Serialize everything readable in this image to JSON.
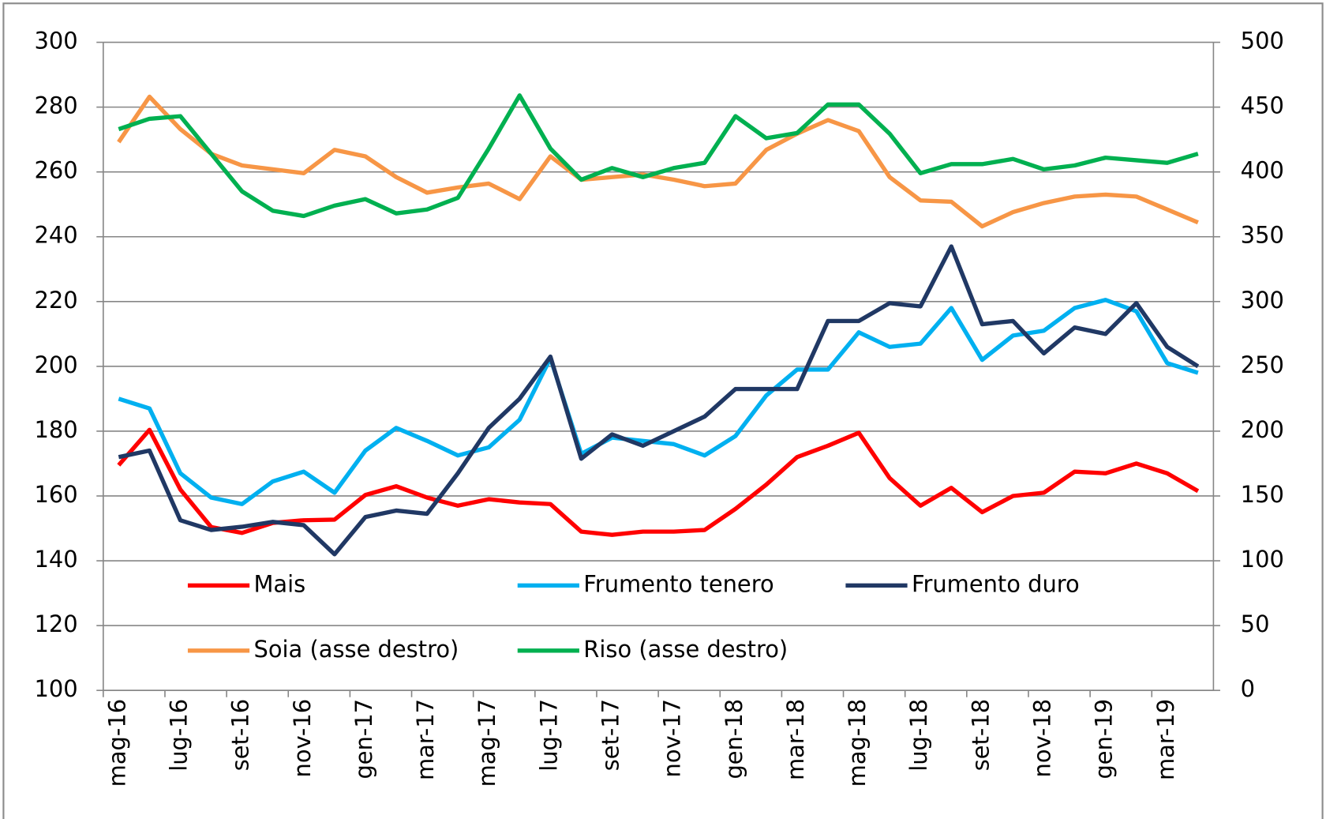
{
  "chart_data": {
    "type": "line",
    "categories": [
      "mag-16",
      null,
      "lug-16",
      null,
      "set-16",
      null,
      "nov-16",
      null,
      "gen-17",
      null,
      "mar-17",
      null,
      "mag-17",
      null,
      "lug-17",
      null,
      "set-17",
      null,
      "nov-17",
      null,
      "gen-18",
      null,
      "mar-18",
      null,
      "mag-18",
      null,
      "lug-18",
      null,
      "set-18",
      null,
      "nov-18",
      null,
      "gen-19",
      null,
      "mar-19",
      null
    ],
    "ylim": [
      100,
      300
    ],
    "yticks": [
      100,
      120,
      140,
      160,
      180,
      200,
      220,
      240,
      260,
      280,
      300
    ],
    "y2lim": [
      0,
      500
    ],
    "y2ticks": [
      0,
      50,
      100,
      150,
      200,
      250,
      300,
      350,
      400,
      450,
      500
    ],
    "grid": true,
    "legend": "lower-left",
    "series": [
      {
        "name": "Mais",
        "color": "#ff0000",
        "values": [
          169.5,
          180.4,
          162,
          150.4,
          148.6,
          151.7,
          152.5,
          152.7,
          160.3,
          163,
          159.5,
          157,
          159,
          158,
          157.5,
          149,
          148,
          149,
          149,
          149.5,
          156,
          163.5,
          172,
          175.5,
          179.5,
          165.5,
          157,
          162.5,
          155,
          160,
          161,
          167.5,
          167,
          170,
          167,
          161.5
        ]
      },
      {
        "name": "Frumento tenero",
        "color": "#00b0f0",
        "values": [
          190,
          187,
          167,
          159.5,
          157.5,
          164.5,
          167.5,
          161,
          174,
          181,
          177,
          172.5,
          175,
          183.5,
          202.5,
          173,
          178,
          177,
          176,
          172.5,
          178.5,
          191,
          199,
          199,
          210.5,
          206,
          207,
          218,
          202,
          209.5,
          211,
          218,
          220.5,
          217,
          201,
          198
        ]
      },
      {
        "name": "Frumento duro",
        "color": "#203864",
        "values": [
          172,
          174,
          152.5,
          149.5,
          150.5,
          152,
          151,
          142,
          153.5,
          155.5,
          154.5,
          167,
          181,
          190,
          203,
          171.5,
          179,
          175.5,
          180,
          184.5,
          193,
          193,
          193,
          214,
          214,
          219.5,
          218.5,
          237,
          213,
          214,
          204,
          212,
          210,
          219.5,
          206,
          200
        ]
      },
      {
        "name": "Soia (asse destro)",
        "color": "#f79646",
        "axis": "y2",
        "values": [
          423,
          458,
          433,
          414,
          405,
          402,
          399,
          417,
          412,
          396,
          384,
          388,
          391,
          379,
          412,
          394,
          396,
          398,
          394,
          389,
          391,
          417,
          429.5,
          440,
          431.5,
          396,
          378,
          377,
          358,
          369,
          376,
          381,
          382.5,
          381,
          371,
          361
        ]
      },
      {
        "name": "Riso (asse destro)",
        "color": "#00b050",
        "axis": "y2",
        "values": [
          433,
          441,
          443,
          414,
          385,
          370,
          366,
          374,
          379,
          368,
          371,
          380,
          418,
          459,
          418,
          394,
          403,
          396,
          403,
          407,
          443,
          426,
          430,
          452,
          452,
          429.5,
          399,
          406,
          406,
          410,
          402,
          405,
          411,
          409,
          407,
          414
        ]
      }
    ]
  }
}
